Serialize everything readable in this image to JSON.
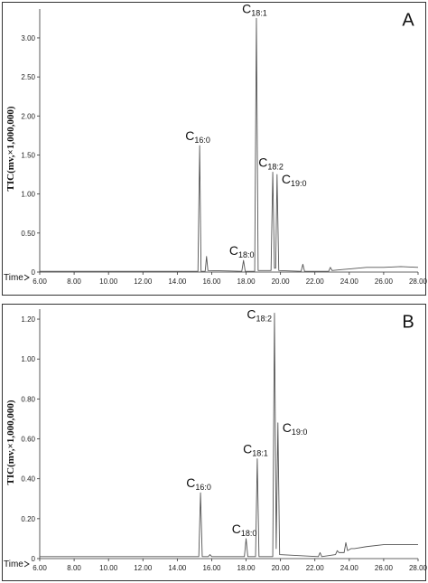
{
  "chart_data": [
    {
      "type": "line",
      "panel_label": "A",
      "ylabel": "TIC(mv,×1,000,000)",
      "xlabel": "Time",
      "xlim": [
        6,
        28
      ],
      "xticks": [
        {
          "value": 6,
          "label": "6.00"
        },
        {
          "value": 8,
          "label": "8.00"
        },
        {
          "value": 10,
          "label": "10.00"
        },
        {
          "value": 12,
          "label": "12.00"
        },
        {
          "value": 14,
          "label": "14.00"
        },
        {
          "value": 16,
          "label": "16.00"
        },
        {
          "value": 18,
          "label": "18.00"
        },
        {
          "value": 20,
          "label": "20.00"
        },
        {
          "value": 22,
          "label": "22.00"
        },
        {
          "value": 24,
          "label": "24.00"
        },
        {
          "value": 26,
          "label": "26.00"
        },
        {
          "value": 28,
          "label": "28.00"
        }
      ],
      "ylim": [
        0,
        3.37
      ],
      "yticks": [
        0,
        {
          "value": 0.5,
          "label": "0.50"
        },
        {
          "value": 1,
          "label": "1.00"
        },
        {
          "value": 1.5,
          "label": "1.50"
        },
        {
          "value": 2,
          "label": "2.00"
        },
        {
          "value": 2.5,
          "label": "2.50"
        },
        {
          "value": 3,
          "label": "3.00"
        }
      ],
      "x": [
        6,
        8,
        10,
        12,
        14,
        15.2,
        15.3,
        15.38,
        15.62,
        15.7,
        15.78,
        17.75,
        17.85,
        17.95,
        18.5,
        18.6,
        18.7,
        19.45,
        19.55,
        19.65,
        19.72,
        19.8,
        19.9,
        21.2,
        21.3,
        21.4,
        22.8,
        22.9,
        23.0,
        24,
        25,
        26,
        27,
        28
      ],
      "series": [
        {
          "color": "#555555",
          "values": [
            0.01,
            0.01,
            0.01,
            0.01,
            0.01,
            0.01,
            1.62,
            0.01,
            0.01,
            0.2,
            0.02,
            0.01,
            0.15,
            0.01,
            0.01,
            3.25,
            0.02,
            0.02,
            1.28,
            0.05,
            0.05,
            1.25,
            0.02,
            0.01,
            0.1,
            0.01,
            0.01,
            0.06,
            0.02,
            0.04,
            0.06,
            0.06,
            0.07,
            0.06
          ]
        }
      ],
      "annotations": [
        {
          "text": "C",
          "sub": "16:0",
          "x": 15.3,
          "y": 1.62,
          "position": "above"
        },
        {
          "text": "C",
          "sub": "18:0",
          "x": 17.85,
          "y": 0.15,
          "position": "above"
        },
        {
          "text": "C",
          "sub": "18:1",
          "x": 18.6,
          "y": 3.25,
          "position": "above"
        },
        {
          "text": "C",
          "sub": "18:2",
          "x": 19.55,
          "y": 1.28,
          "position": "above"
        },
        {
          "text": "C",
          "sub": "19:0",
          "x": 19.8,
          "y": 1.25,
          "position": "right"
        }
      ]
    },
    {
      "type": "line",
      "panel_label": "B",
      "ylabel": "TIC(mv,×1,000,000)",
      "xlabel": "Time",
      "xlim": [
        6,
        28
      ],
      "xticks": [
        {
          "value": 6,
          "label": "6.00"
        },
        {
          "value": 8,
          "label": "8.00"
        },
        {
          "value": 10,
          "label": "10.00"
        },
        {
          "value": 12,
          "label": "12.00"
        },
        {
          "value": 14,
          "label": "14.00"
        },
        {
          "value": 16,
          "label": "16.00"
        },
        {
          "value": 18,
          "label": "18.00"
        },
        {
          "value": 20,
          "label": "20.00"
        },
        {
          "value": 22,
          "label": "22.00"
        },
        {
          "value": 24,
          "label": "24.00"
        },
        {
          "value": 26,
          "label": "26.00"
        },
        {
          "value": 28,
          "label": "28.00"
        }
      ],
      "ylim": [
        0,
        1.25
      ],
      "yticks": [
        0,
        {
          "value": 0.2,
          "label": "0.20"
        },
        {
          "value": 0.4,
          "label": "0.40"
        },
        {
          "value": 0.6,
          "label": "0.60"
        },
        {
          "value": 0.8,
          "label": "0.80"
        },
        {
          "value": 1,
          "label": "1.00"
        },
        {
          "value": 1.2,
          "label": "1.20"
        }
      ],
      "x": [
        6,
        10,
        14,
        15.25,
        15.35,
        15.45,
        15.8,
        15.9,
        16.0,
        17.9,
        18.0,
        18.1,
        18.55,
        18.65,
        18.75,
        19.55,
        19.65,
        19.75,
        19.85,
        19.95,
        22.2,
        22.3,
        22.4,
        23.2,
        23.3,
        23.4,
        23.7,
        23.8,
        23.9,
        24.1,
        24.3,
        25,
        26,
        27,
        28
      ],
      "series": [
        {
          "color": "#555555",
          "values": [
            0.01,
            0.01,
            0.01,
            0.01,
            0.33,
            0.01,
            0.01,
            0.02,
            0.01,
            0.01,
            0.1,
            0.01,
            0.01,
            0.5,
            0.01,
            0.01,
            1.23,
            0.05,
            0.68,
            0.02,
            0.01,
            0.03,
            0.01,
            0.02,
            0.04,
            0.03,
            0.03,
            0.08,
            0.04,
            0.05,
            0.05,
            0.06,
            0.07,
            0.07,
            0.07
          ]
        }
      ],
      "annotations": [
        {
          "text": "C",
          "sub": "16:0",
          "x": 15.35,
          "y": 0.33,
          "position": "above"
        },
        {
          "text": "C",
          "sub": "18:0",
          "x": 18.0,
          "y": 0.1,
          "position": "above"
        },
        {
          "text": "C",
          "sub": "18:1",
          "x": 18.65,
          "y": 0.5,
          "position": "above"
        },
        {
          "text": "C",
          "sub": "18:2",
          "x": 19.65,
          "y": 1.23,
          "position": "left"
        },
        {
          "text": "C",
          "sub": "19:0",
          "x": 19.85,
          "y": 0.68,
          "position": "right"
        }
      ]
    }
  ]
}
